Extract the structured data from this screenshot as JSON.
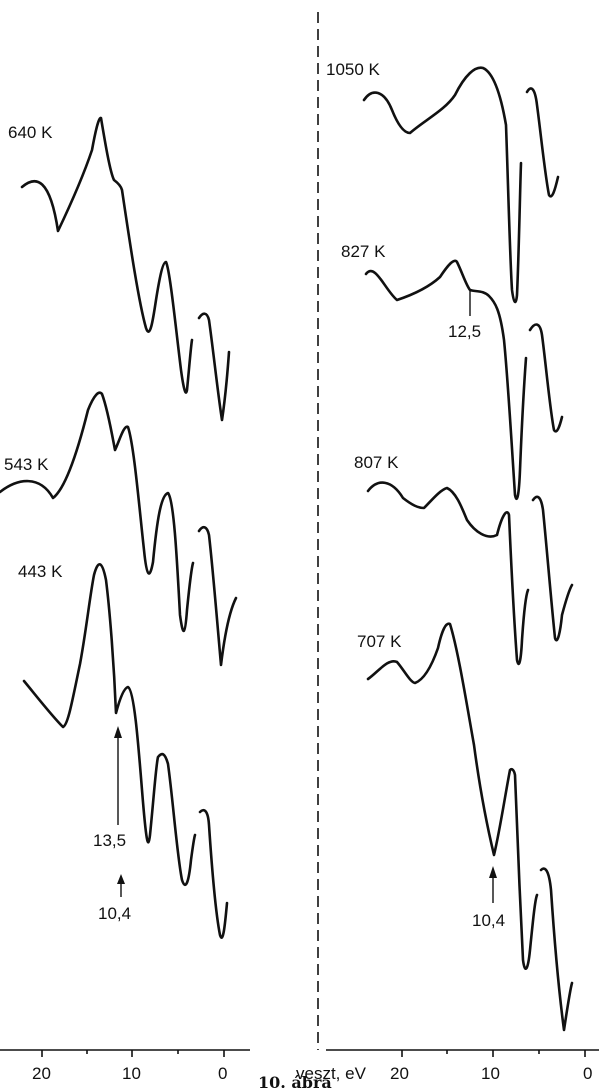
{
  "figure": {
    "caption": "10. ábra",
    "x_axis_label": "veszt, eV",
    "left_ticks": [
      "20",
      "10",
      "0"
    ],
    "right_ticks": [
      "20",
      "10",
      "0"
    ],
    "left_panel": {
      "spectra": [
        {
          "temperature": "640 K"
        },
        {
          "temperature": "543 K"
        },
        {
          "temperature": "443 K"
        }
      ],
      "annotations": [
        "13,5",
        "10,4"
      ]
    },
    "right_panel": {
      "spectra": [
        {
          "temperature": "1050 K"
        },
        {
          "temperature": "827 K"
        },
        {
          "temperature": "807 K"
        },
        {
          "temperature": "707 K"
        }
      ],
      "annotations": [
        "12,5",
        "10,4"
      ]
    }
  }
}
